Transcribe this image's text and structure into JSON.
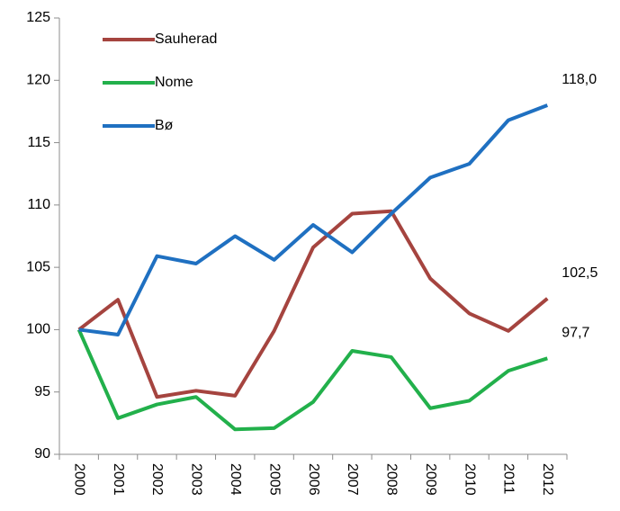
{
  "chart_data": {
    "type": "line",
    "categories": [
      "2000",
      "2001",
      "2002",
      "2003",
      "2004",
      "2005",
      "2006",
      "2007",
      "2008",
      "2009",
      "2010",
      "2011",
      "2012"
    ],
    "series": [
      {
        "name": "Sauherad",
        "color": "#a5443f",
        "values": [
          100,
          102.4,
          94.6,
          95.1,
          94.7,
          99.9,
          106.6,
          109.3,
          109.5,
          104.1,
          101.3,
          99.9,
          102.5
        ],
        "value_labels": [
          null,
          null,
          null,
          null,
          null,
          null,
          null,
          null,
          null,
          null,
          null,
          null,
          "102,5"
        ]
      },
      {
        "name": "Nome",
        "color": "#22b04b",
        "values": [
          100,
          92.9,
          94.0,
          94.6,
          92.0,
          92.1,
          94.2,
          98.3,
          97.8,
          93.7,
          94.3,
          96.7,
          97.7
        ],
        "value_labels": [
          null,
          null,
          null,
          null,
          null,
          null,
          null,
          null,
          null,
          null,
          null,
          null,
          "97,7"
        ]
      },
      {
        "name": "Bø",
        "color": "#1f70c1",
        "values": [
          100,
          99.6,
          105.9,
          105.3,
          107.5,
          105.6,
          108.4,
          106.2,
          109.3,
          112.2,
          113.3,
          116.8,
          118.0
        ],
        "value_labels": [
          null,
          null,
          null,
          null,
          null,
          null,
          null,
          null,
          null,
          null,
          null,
          null,
          "118,0"
        ]
      }
    ],
    "ylim": [
      90,
      125
    ],
    "yticks": [
      90,
      95,
      100,
      105,
      110,
      115,
      120,
      125
    ],
    "grid": false,
    "legend": "top-left"
  }
}
